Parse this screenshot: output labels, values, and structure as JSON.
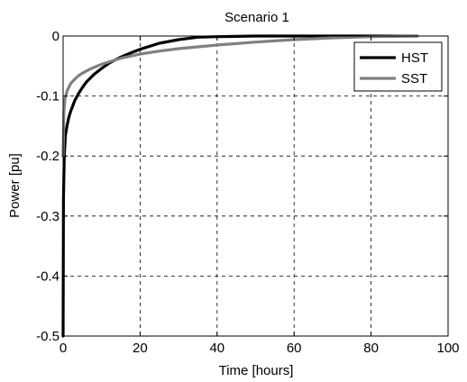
{
  "chart_data": {
    "type": "line",
    "title": "Scenario 1",
    "xlabel": "Time [hours]",
    "ylabel": "Power [pu]",
    "xlim": [
      0,
      100
    ],
    "ylim": [
      -0.5,
      0
    ],
    "xticks": [
      0,
      20,
      40,
      60,
      80,
      100
    ],
    "yticks": [
      0,
      -0.1,
      -0.2,
      -0.3,
      -0.4,
      -0.5
    ],
    "xtick_labels": [
      "0",
      "20",
      "40",
      "60",
      "80",
      "100"
    ],
    "ytick_labels": [
      "0",
      "-0.1",
      "-0.2",
      "-0.3",
      "-0.4",
      "-0.5"
    ],
    "grid": true,
    "legend_position": "top-right",
    "series": [
      {
        "name": "HST",
        "color": "#000000",
        "x": [
          0,
          0.1,
          0.3,
          0.6,
          1,
          1.5,
          2,
          3,
          4,
          5,
          6,
          8,
          10,
          12,
          15,
          18,
          20,
          25,
          30,
          35,
          40,
          50,
          60,
          70,
          80,
          90,
          92
        ],
        "y": [
          -0.5,
          -0.27,
          -0.2,
          -0.165,
          -0.15,
          -0.135,
          -0.125,
          -0.108,
          -0.096,
          -0.086,
          -0.077,
          -0.064,
          -0.054,
          -0.045,
          -0.035,
          -0.027,
          -0.022,
          -0.012,
          -0.006,
          -0.002,
          -0.001,
          0,
          0,
          0,
          0,
          0,
          0
        ]
      },
      {
        "name": "SST",
        "color": "#808080",
        "x": [
          0,
          0.2,
          0.5,
          1,
          1.5,
          2,
          3,
          4,
          5,
          7,
          10,
          15,
          20,
          25,
          30,
          40,
          50,
          60,
          70,
          80,
          90,
          92
        ],
        "y": [
          -0.2,
          -0.125,
          -0.105,
          -0.092,
          -0.085,
          -0.079,
          -0.072,
          -0.066,
          -0.062,
          -0.055,
          -0.047,
          -0.037,
          -0.03,
          -0.025,
          -0.021,
          -0.015,
          -0.01,
          -0.006,
          -0.003,
          -0.001,
          0,
          0
        ]
      }
    ]
  }
}
